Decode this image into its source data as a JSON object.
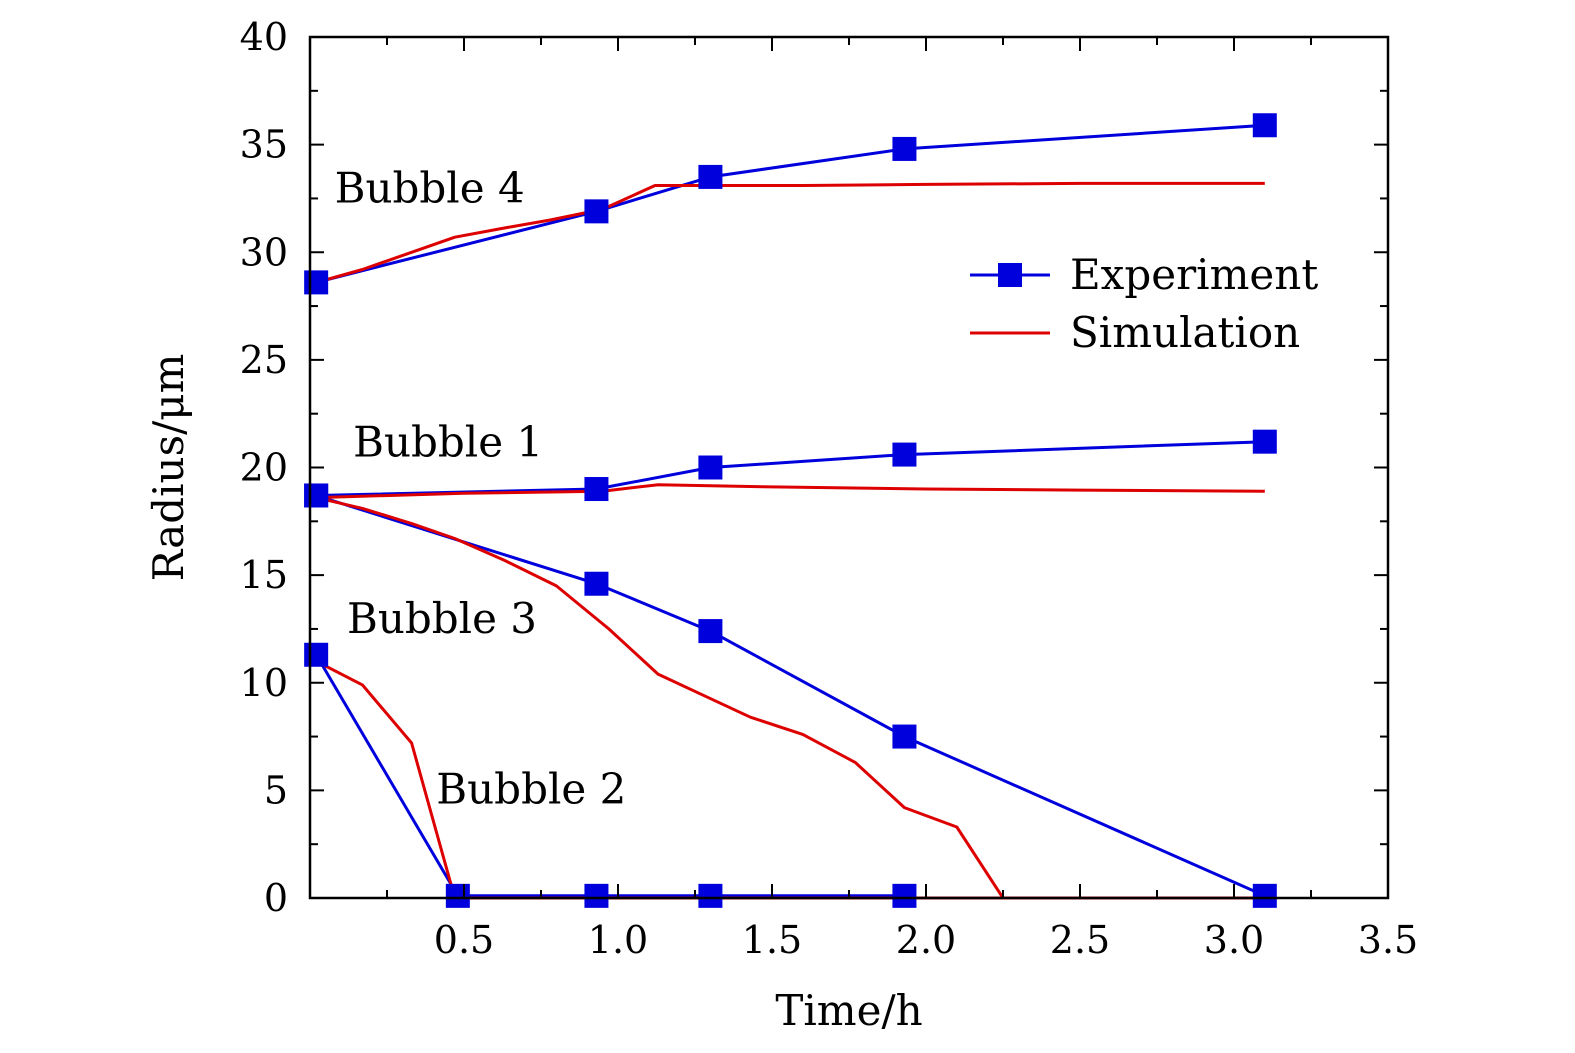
{
  "chart_data": {
    "type": "line",
    "xlabel": "Time/h",
    "ylabel": "Radius/μm",
    "xlim": [
      0,
      3.5
    ],
    "ylim": [
      0,
      40
    ],
    "x_ticks": [
      "0.5",
      "1.0",
      "1.5",
      "2.0",
      "2.5",
      "3.0",
      "3.5"
    ],
    "y_ticks": [
      "0",
      "5",
      "10",
      "15",
      "20",
      "25",
      "30",
      "35",
      "40"
    ],
    "grid": false,
    "legend_position": "top-right",
    "legend": [
      {
        "label": "Experiment",
        "color": "#0000dd",
        "marker": "square"
      },
      {
        "label": "Simulation",
        "color": "#dd0000",
        "marker": "none"
      }
    ],
    "annotations": [
      {
        "text": "Bubble 4",
        "x": 0.08,
        "y": 32.3
      },
      {
        "text": "Bubble 1",
        "x": 0.14,
        "y": 20.5
      },
      {
        "text": "Bubble 3",
        "x": 0.12,
        "y": 12.3
      },
      {
        "text": "Bubble 2",
        "x": 0.41,
        "y": 4.4
      }
    ],
    "series": [
      {
        "bubble": "Bubble 4",
        "kind": "Experiment",
        "x": [
          0.02,
          0.93,
          1.3,
          1.93,
          3.1
        ],
        "y": [
          28.6,
          31.9,
          33.5,
          34.8,
          35.9
        ]
      },
      {
        "bubble": "Bubble 1",
        "kind": "Experiment",
        "x": [
          0.02,
          0.93,
          1.3,
          1.93,
          3.1
        ],
        "y": [
          18.7,
          19.0,
          20.0,
          20.6,
          21.2
        ]
      },
      {
        "bubble": "Bubble 3",
        "kind": "Experiment",
        "x": [
          0.02,
          0.93,
          1.3,
          1.93,
          3.1
        ],
        "y": [
          18.7,
          14.6,
          12.4,
          7.5,
          0.1
        ]
      },
      {
        "bubble": "Bubble 2",
        "kind": "Experiment",
        "x": [
          0.02,
          0.48,
          0.93,
          1.3,
          1.93
        ],
        "y": [
          11.3,
          0.1,
          0.1,
          0.1,
          0.1
        ]
      },
      {
        "bubble": "Bubble 4",
        "kind": "Simulation",
        "x": [
          0.02,
          0.17,
          0.33,
          0.47,
          0.62,
          0.78,
          0.95,
          1.12,
          1.3,
          1.6,
          2.0,
          2.5,
          3.1
        ],
        "y": [
          28.6,
          29.2,
          30.0,
          30.7,
          31.1,
          31.5,
          32.0,
          33.1,
          33.1,
          33.1,
          33.15,
          33.2,
          33.2
        ]
      },
      {
        "bubble": "Bubble 1",
        "kind": "Simulation",
        "x": [
          0.02,
          0.5,
          0.95,
          1.13,
          1.5,
          2.0,
          2.5,
          3.1
        ],
        "y": [
          18.6,
          18.8,
          18.9,
          19.2,
          19.1,
          19.0,
          18.95,
          18.9
        ]
      },
      {
        "bubble": "Bubble 3",
        "kind": "Simulation",
        "x": [
          0.02,
          0.17,
          0.33,
          0.47,
          0.63,
          0.8,
          0.97,
          1.13,
          1.28,
          1.43,
          1.6,
          1.77,
          1.93,
          2.1,
          2.25,
          3.1
        ],
        "y": [
          18.6,
          18.1,
          17.4,
          16.7,
          15.7,
          14.5,
          12.5,
          10.4,
          9.4,
          8.4,
          7.6,
          6.3,
          4.2,
          3.3,
          0.0,
          0.0
        ]
      },
      {
        "bubble": "Bubble 2",
        "kind": "Simulation",
        "x": [
          0.02,
          0.17,
          0.33,
          0.47,
          0.7,
          1.0,
          1.5,
          2.0,
          2.5,
          3.1
        ],
        "y": [
          11.0,
          9.9,
          7.2,
          0.0,
          0.0,
          0.0,
          0.0,
          0.0,
          0.0,
          0.0
        ]
      }
    ]
  }
}
